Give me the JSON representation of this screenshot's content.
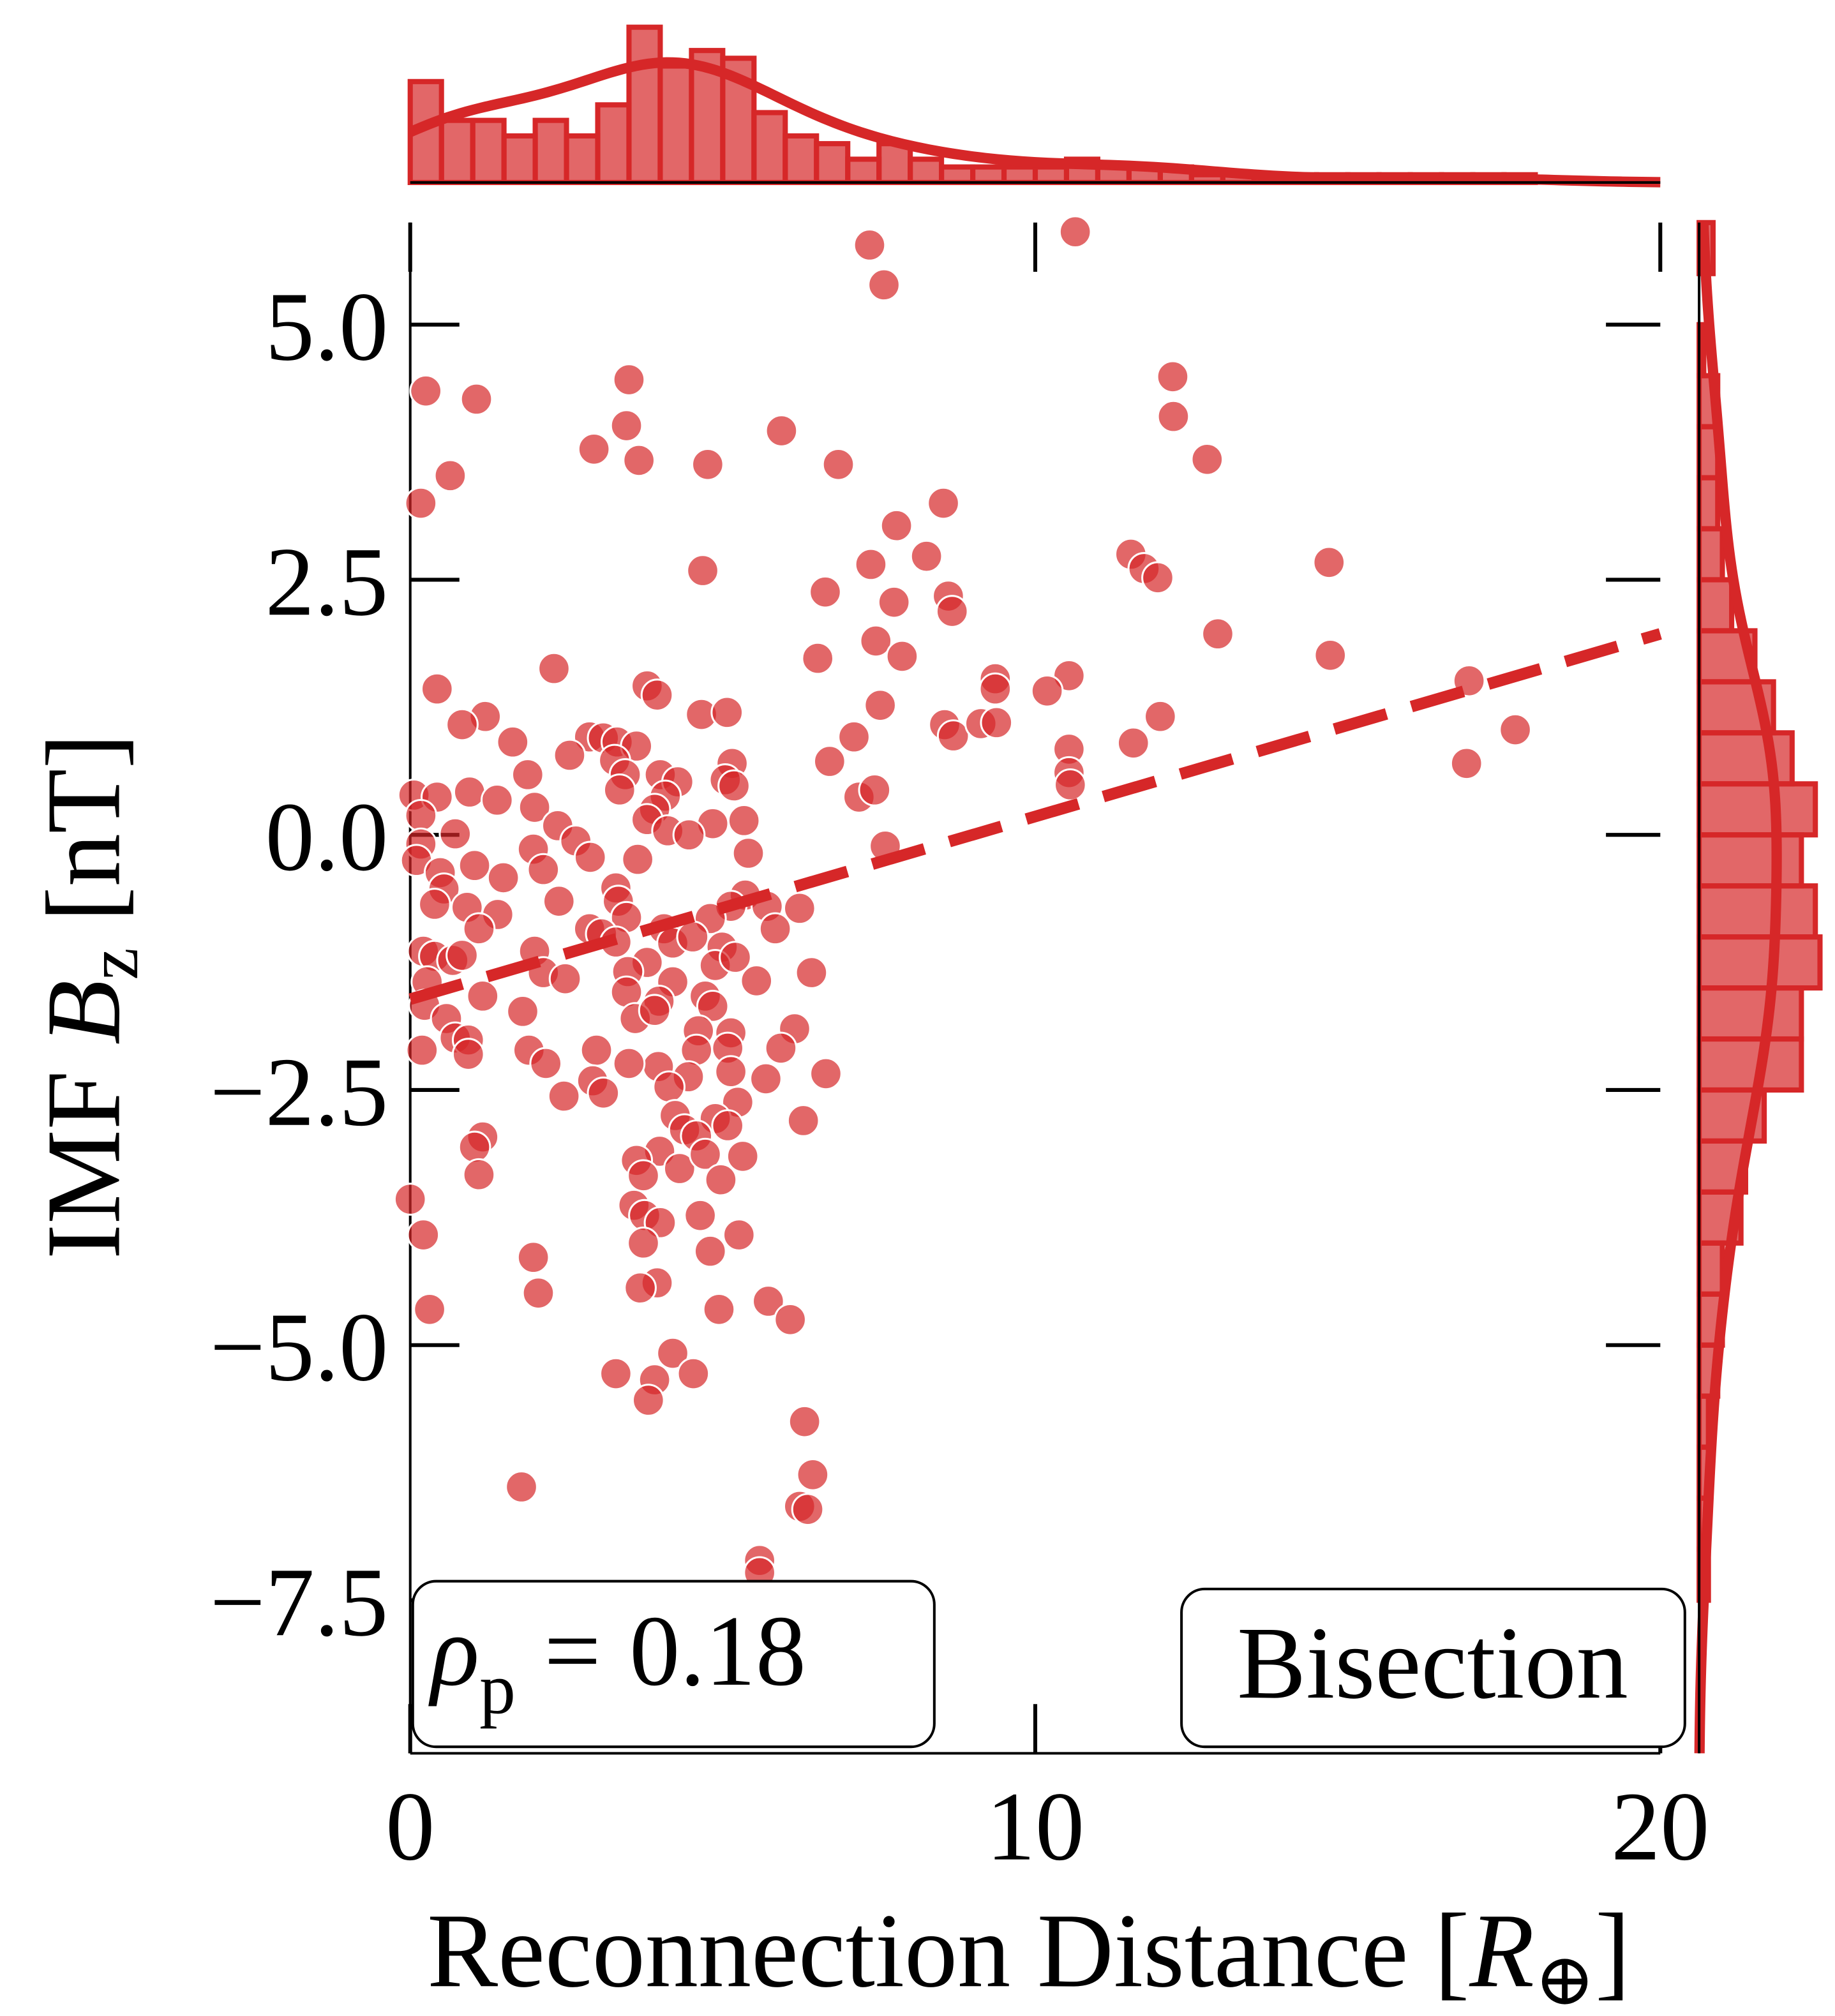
{
  "chart_data": [
    {
      "type": "scatter",
      "color": "#d62728",
      "xlabel": {
        "text": "Reconnection Distance",
        "open": "[",
        "symbol": "R",
        "subscript": "⊕",
        "close": "]"
      },
      "ylabel": {
        "prefix": "IMF",
        "symbol": "B",
        "subscript": "z",
        "unit": "[nT]"
      },
      "xlim": [
        0,
        20
      ],
      "ylim": [
        -9,
        6
      ],
      "xticks": [
        0,
        10,
        20
      ],
      "yticks": [
        {
          "value": -7.5,
          "label": "−7.5"
        },
        {
          "value": -5,
          "label": "−5.0"
        },
        {
          "value": -2.5,
          "label": "−2.5"
        },
        {
          "value": 0,
          "label": "0.0"
        },
        {
          "value": 2.5,
          "label": "2.5"
        },
        {
          "value": 5,
          "label": "5.0"
        }
      ],
      "x": [
        7.35,
        7.58,
        10.64,
        0.25,
        1.06,
        3.5,
        3.46,
        2.94,
        3.66,
        4.76,
        5.94,
        6.85,
        0.64,
        0.17,
        8.53,
        12.2,
        12.21,
        12.75,
        7.78,
        8.26,
        7.37,
        4.68,
        11.53,
        11.74,
        11.96,
        14.7,
        6.64,
        7.74,
        8.61,
        8.67,
        7.45,
        7.87,
        6.52,
        12.92,
        14.72,
        2.3,
        0.43,
        9.36,
        9.36,
        10.54,
        10.19,
        16.94,
        3.79,
        3.95,
        7.52,
        4.66,
        5.07,
        1.2,
        0.83,
        8.55,
        8.69,
        9.13,
        9.38,
        12.0,
        11.57,
        17.68,
        7.1,
        1.64,
        2.87,
        3.09,
        3.31,
        3.62,
        2.55,
        6.71,
        10.54,
        16.9,
        3.27,
        3.44,
        5.15,
        4.0,
        4.28,
        5.04,
        5.18,
        1.88,
        10.54,
        10.56,
        7.18,
        7.43,
        3.35,
        4.08,
        0.95,
        1.39,
        0.06,
        0.43,
        0.17,
        1.99,
        3.91,
        3.79,
        4.84,
        5.34,
        2.36,
        4.12,
        4.46,
        0.72,
        2.65,
        0.17,
        1.97,
        2.88,
        5.41,
        7.6,
        3.64,
        1.03,
        0.1,
        0.48,
        1.49,
        2.13,
        0.54,
        3.29,
        2.38,
        3.33,
        5.36,
        5.71,
        6.23,
        5.13,
        0.39,
        0.91,
        1.4,
        3.46,
        4.8,
        1.1,
        2.87,
        3.06,
        5.84,
        4.06,
        3.29,
        4.2,
        4.52,
        4.99,
        0.21,
        0.39,
        0.68,
        0.83,
        1.99,
        3.79,
        4.88,
        5.2,
        2.13,
        2.48,
        3.48,
        5.54,
        6.42,
        0.27,
        4.2,
        1.16,
        3.46,
        3.98,
        4.72,
        0.23,
        1.8,
        4.84,
        0.58,
        3.6,
        3.91,
        0.72,
        0.93,
        4.61,
        5.13,
        6.15,
        0.19,
        0.93,
        1.9,
        2.98,
        4.58,
        5.08,
        5.93,
        2.17,
        3.97,
        5.13,
        4.45,
        5.69,
        6.65,
        2.92,
        3.5,
        3.09,
        2.46,
        4.14,
        5.24,
        4.24,
        4.88,
        5.08,
        6.29,
        4.39,
        4.58,
        1.16,
        1.03,
        3.99,
        3.62,
        5.32,
        4.31,
        4.72,
        1.1,
        3.73,
        4.97,
        3.58,
        0.0,
        3.75,
        4.0,
        4.64,
        5.26,
        0.21,
        3.73,
        4.8,
        1.97,
        3.95,
        3.68,
        2.05,
        5.73,
        4.94,
        6.08,
        0.31,
        4.2,
        3.29,
        4.53,
        3.91,
        3.81,
        6.31,
        1.78,
        6.44,
        6.23,
        6.36,
        5.59,
        5.59
      ],
      "y": [
        5.78,
        5.39,
        5.91,
        4.35,
        4.27,
        4.46,
        4.01,
        3.78,
        3.67,
        3.63,
        3.96,
        3.63,
        3.52,
        3.25,
        3.25,
        4.49,
        4.1,
        3.68,
        3.03,
        2.73,
        2.65,
        2.59,
        2.75,
        2.61,
        2.52,
        2.67,
        2.38,
        2.28,
        2.34,
        2.19,
        1.9,
        1.75,
        1.73,
        1.97,
        1.76,
        1.63,
        1.43,
        1.53,
        1.43,
        1.56,
        1.41,
        1.51,
        1.46,
        1.37,
        1.27,
        1.18,
        1.2,
        1.16,
        1.08,
        1.08,
        0.97,
        1.09,
        1.1,
        1.16,
        0.9,
        1.03,
        0.96,
        0.91,
        0.96,
        0.95,
        0.91,
        0.87,
        0.78,
        0.72,
        0.84,
        0.7,
        0.73,
        0.59,
        0.7,
        0.59,
        0.52,
        0.54,
        0.48,
        0.59,
        0.61,
        0.49,
        0.37,
        0.44,
        0.44,
        0.38,
        0.42,
        0.34,
        0.39,
        0.37,
        0.19,
        0.27,
        0.25,
        0.15,
        0.11,
        0.14,
        0.09,
        0.04,
        0.0,
        0.01,
        -0.06,
        -0.09,
        -0.14,
        -0.22,
        -0.18,
        -0.11,
        -0.24,
        -0.3,
        -0.25,
        -0.37,
        -0.42,
        -0.34,
        -0.53,
        -0.52,
        -0.65,
        -0.65,
        -0.59,
        -0.7,
        -0.72,
        -0.7,
        -0.68,
        -0.71,
        -0.78,
        -0.81,
        -0.82,
        -0.92,
        -0.92,
        -0.97,
        -0.92,
        -0.92,
        -1.05,
        -1.06,
        -1.0,
        -1.1,
        -1.14,
        -1.19,
        -1.23,
        -1.18,
        -1.14,
        -1.25,
        -1.28,
        -1.2,
        -1.35,
        -1.41,
        -1.34,
        -1.43,
        -1.35,
        -1.44,
        -1.44,
        -1.58,
        -1.54,
        -1.63,
        -1.58,
        -1.67,
        -1.73,
        -1.68,
        -1.8,
        -1.8,
        -1.72,
        -1.99,
        -2.01,
        -1.92,
        -1.94,
        -1.9,
        -2.11,
        -2.15,
        -2.11,
        -2.11,
        -2.11,
        -2.09,
        -2.09,
        -2.24,
        -2.27,
        -2.32,
        -2.37,
        -2.39,
        -2.34,
        -2.41,
        -2.24,
        -2.53,
        -2.56,
        -2.47,
        -2.62,
        -2.75,
        -2.78,
        -2.85,
        -2.8,
        -2.89,
        -2.95,
        -2.96,
        -3.06,
        -3.1,
        -3.19,
        -3.15,
        -3.27,
        -3.13,
        -3.33,
        -3.34,
        -3.38,
        -3.63,
        -3.57,
        -3.73,
        -3.8,
        -3.73,
        -3.92,
        -3.92,
        -4.0,
        -4.08,
        -4.14,
        -4.39,
        -4.44,
        -4.49,
        -4.57,
        -4.65,
        -4.75,
        -4.65,
        -5.08,
        -5.28,
        -5.28,
        -5.34,
        -5.54,
        -5.75,
        -6.39,
        -6.27,
        -6.58,
        -6.61,
        -7.11,
        -7.23
      ],
      "fit": {
        "x": [
          0,
          20
        ],
        "y": [
          -1.61,
          1.97
        ]
      },
      "annotation": {
        "symbol": "ρ",
        "subscript": "p",
        "relation": "=",
        "value": 0.18
      },
      "label": "Bisection"
    },
    {
      "type": "histogram",
      "orientation": "vertical",
      "color": "#d62728",
      "ylim": [
        0,
        20
      ],
      "bins": [
        0,
        0.5,
        1,
        1.5,
        2,
        2.5,
        3,
        3.5,
        4,
        4.5,
        5,
        5.5,
        6,
        6.5,
        7,
        7.5,
        8,
        8.5,
        9,
        9.5,
        10,
        10.5,
        11,
        11.5,
        12,
        12.5,
        13,
        13.5,
        14,
        14.5,
        15,
        15.5,
        16,
        16.5,
        17,
        17.5,
        18,
        18.5,
        19,
        19.5,
        20
      ],
      "counts": [
        13,
        8,
        8,
        6,
        8,
        6,
        10,
        20,
        15,
        17,
        16,
        9,
        6,
        5,
        3,
        5,
        3,
        2,
        2,
        2,
        2,
        3,
        2,
        2,
        2,
        1,
        1,
        1,
        1,
        1,
        1,
        1,
        1,
        1,
        1,
        1,
        0,
        0,
        0,
        0
      ]
    },
    {
      "type": "histogram",
      "orientation": "horizontal",
      "color": "#d62728",
      "xlim": [
        0,
        27
      ],
      "bins": [
        -9,
        -8.5,
        -8,
        -7.5,
        -7,
        -6.5,
        -6,
        -5.5,
        -5,
        -4.5,
        -4,
        -3.5,
        -3,
        -2.5,
        -2,
        -1.5,
        -1,
        -0.5,
        0,
        0.5,
        1,
        1.5,
        2,
        2.5,
        3,
        3.5,
        4,
        4.5,
        5,
        5.5,
        6
      ],
      "counts": [
        0,
        0,
        0,
        2,
        2,
        2,
        2,
        4,
        5,
        5,
        9,
        10,
        14,
        22,
        22,
        26,
        25,
        22,
        25,
        20,
        16,
        12,
        7,
        5,
        4,
        4,
        4,
        1,
        0,
        3
      ]
    }
  ]
}
